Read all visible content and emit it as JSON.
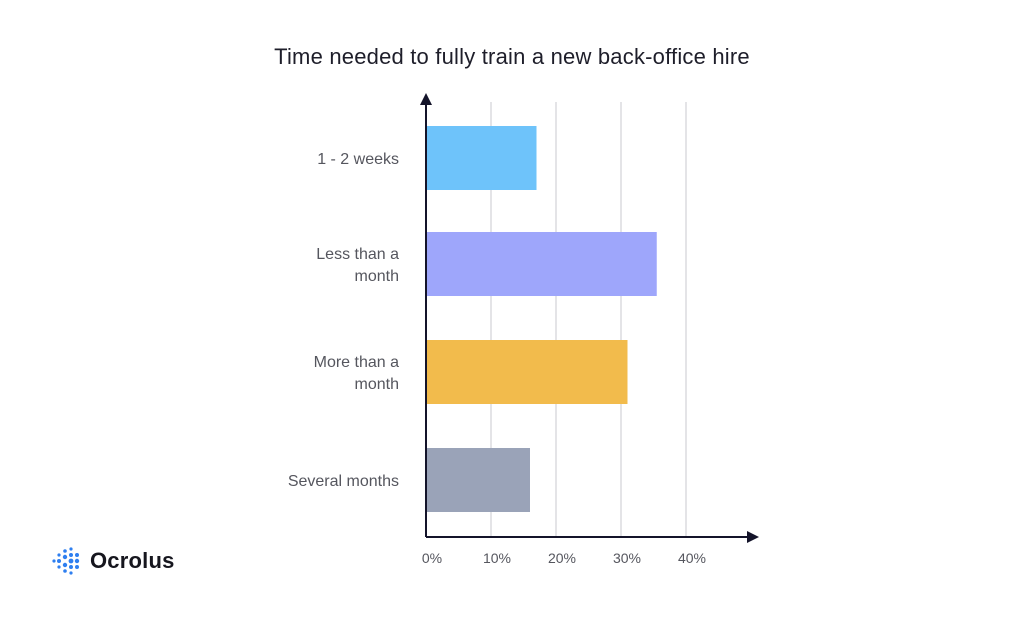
{
  "chart_data": {
    "type": "bar",
    "orientation": "horizontal",
    "title": "Time needed to fully train a new back-office hire",
    "categories": [
      [
        "1 - 2 weeks"
      ],
      [
        "Less than a",
        "month"
      ],
      [
        "More than a",
        "month"
      ],
      [
        "Several months"
      ]
    ],
    "values": [
      17,
      35.5,
      31,
      16
    ],
    "colors": [
      "#6ec3fa",
      "#9ea6fb",
      "#f2bb4c",
      "#9aa3b8"
    ],
    "xticks": [
      "0%",
      "10%",
      "20%",
      "30%",
      "40%"
    ],
    "xlim": [
      0,
      40
    ],
    "grid": true
  },
  "brand": {
    "name": "Ocrolus",
    "icon": "ocrolus-logo-icon",
    "accent": "#2f7ff0"
  }
}
